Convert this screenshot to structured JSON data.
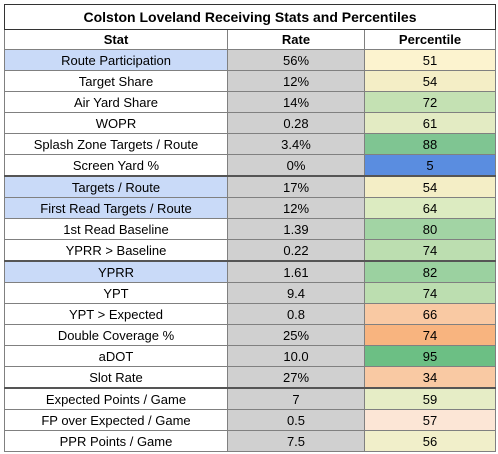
{
  "title": "Colston Loveland Receiving Stats and Percentiles",
  "columns": [
    "Stat",
    "Rate",
    "Percentile"
  ],
  "rows": [
    {
      "stat": "Route Participation",
      "rate": "56%",
      "percentile": "51",
      "highlight": true,
      "pct_color": "#fcf3cf",
      "group_start": false
    },
    {
      "stat": "Target Share",
      "rate": "12%",
      "percentile": "54",
      "highlight": false,
      "pct_color": "#f4eec6",
      "group_start": false
    },
    {
      "stat": "Air Yard Share",
      "rate": "14%",
      "percentile": "72",
      "highlight": false,
      "pct_color": "#c4e1b3",
      "group_start": false
    },
    {
      "stat": "WOPR",
      "rate": "0.28",
      "percentile": "61",
      "highlight": false,
      "pct_color": "#e3ebc3",
      "group_start": false
    },
    {
      "stat": "Splash Zone Targets / Route",
      "rate": "3.4%",
      "percentile": "88",
      "highlight": false,
      "pct_color": "#7fc592",
      "group_start": false
    },
    {
      "stat": "Screen Yard %",
      "rate": "0%",
      "percentile": "5",
      "highlight": false,
      "pct_color": "#5a8de0",
      "group_start": false
    },
    {
      "stat": "Targets / Route",
      "rate": "17%",
      "percentile": "54",
      "highlight": true,
      "pct_color": "#f4eec6",
      "group_start": true
    },
    {
      "stat": "First Read Targets / Route",
      "rate": "12%",
      "percentile": "64",
      "highlight": true,
      "pct_color": "#dcebc1",
      "group_start": false
    },
    {
      "stat": "1st Read Baseline",
      "rate": "1.39",
      "percentile": "80",
      "highlight": false,
      "pct_color": "#a2d4a4",
      "group_start": false
    },
    {
      "stat": "YPRR > Baseline",
      "rate": "0.22",
      "percentile": "74",
      "highlight": false,
      "pct_color": "#bcdeb0",
      "group_start": false
    },
    {
      "stat": "YPRR",
      "rate": "1.61",
      "percentile": "82",
      "highlight": true,
      "pct_color": "#9bd1a0",
      "group_start": true
    },
    {
      "stat": "YPT",
      "rate": "9.4",
      "percentile": "74",
      "highlight": false,
      "pct_color": "#bcdeb0",
      "group_start": false
    },
    {
      "stat": "YPT > Expected",
      "rate": "0.8",
      "percentile": "66",
      "highlight": false,
      "pct_color": "#f9c9a3",
      "group_start": false
    },
    {
      "stat": "Double Coverage %",
      "rate": "25%",
      "percentile": "74",
      "highlight": false,
      "pct_color": "#f8b47f",
      "group_start": false
    },
    {
      "stat": "aDOT",
      "rate": "10.0",
      "percentile": "95",
      "highlight": false,
      "pct_color": "#6cbf84",
      "group_start": false
    },
    {
      "stat": "Slot Rate",
      "rate": "27%",
      "percentile": "34",
      "highlight": false,
      "pct_color": "#f9c9a3",
      "group_start": false
    },
    {
      "stat": "Expected Points / Game",
      "rate": "7",
      "percentile": "59",
      "highlight": false,
      "pct_color": "#e6edc6",
      "group_start": true
    },
    {
      "stat": "FP over Expected / Game",
      "rate": "0.5",
      "percentile": "57",
      "highlight": false,
      "pct_color": "#fce6d6",
      "group_start": false
    },
    {
      "stat": "PPR Points / Game",
      "rate": "7.5",
      "percentile": "56",
      "highlight": false,
      "pct_color": "#f1efca",
      "group_start": false
    }
  ]
}
